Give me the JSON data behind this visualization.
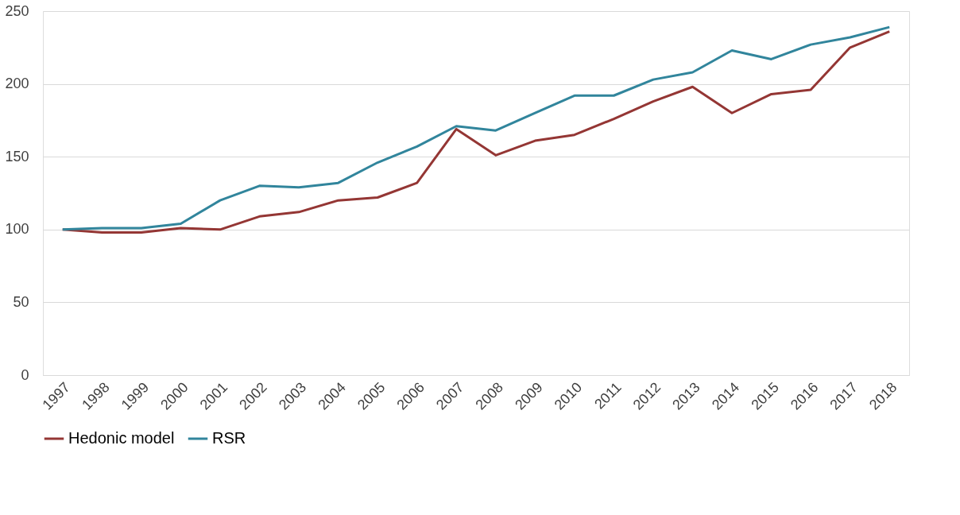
{
  "chart_data": {
    "type": "line",
    "categories": [
      "1997",
      "1998",
      "1999",
      "2000",
      "2001",
      "2002",
      "2003",
      "2004",
      "2005",
      "2006",
      "2007",
      "2008",
      "2009",
      "2010",
      "2011",
      "2012",
      "2013",
      "2014",
      "2015",
      "2016",
      "2017",
      "2018"
    ],
    "series": [
      {
        "name": "Hedonic model",
        "color": "#943634",
        "values": [
          100,
          98,
          98,
          101,
          100,
          109,
          112,
          120,
          122,
          132,
          169,
          151,
          161,
          165,
          176,
          188,
          198,
          180,
          193,
          196,
          225,
          236
        ]
      },
      {
        "name": "RSR",
        "color": "#31859c",
        "values": [
          100,
          101,
          101,
          104,
          120,
          130,
          129,
          132,
          146,
          157,
          171,
          168,
          180,
          192,
          192,
          203,
          208,
          223,
          217,
          227,
          232,
          239
        ]
      }
    ],
    "ylim": [
      0,
      250
    ],
    "yticks": [
      0,
      50,
      100,
      150,
      200,
      250
    ],
    "grid": "y",
    "legend": "bottom",
    "marker": "none",
    "line_style": "solid"
  }
}
